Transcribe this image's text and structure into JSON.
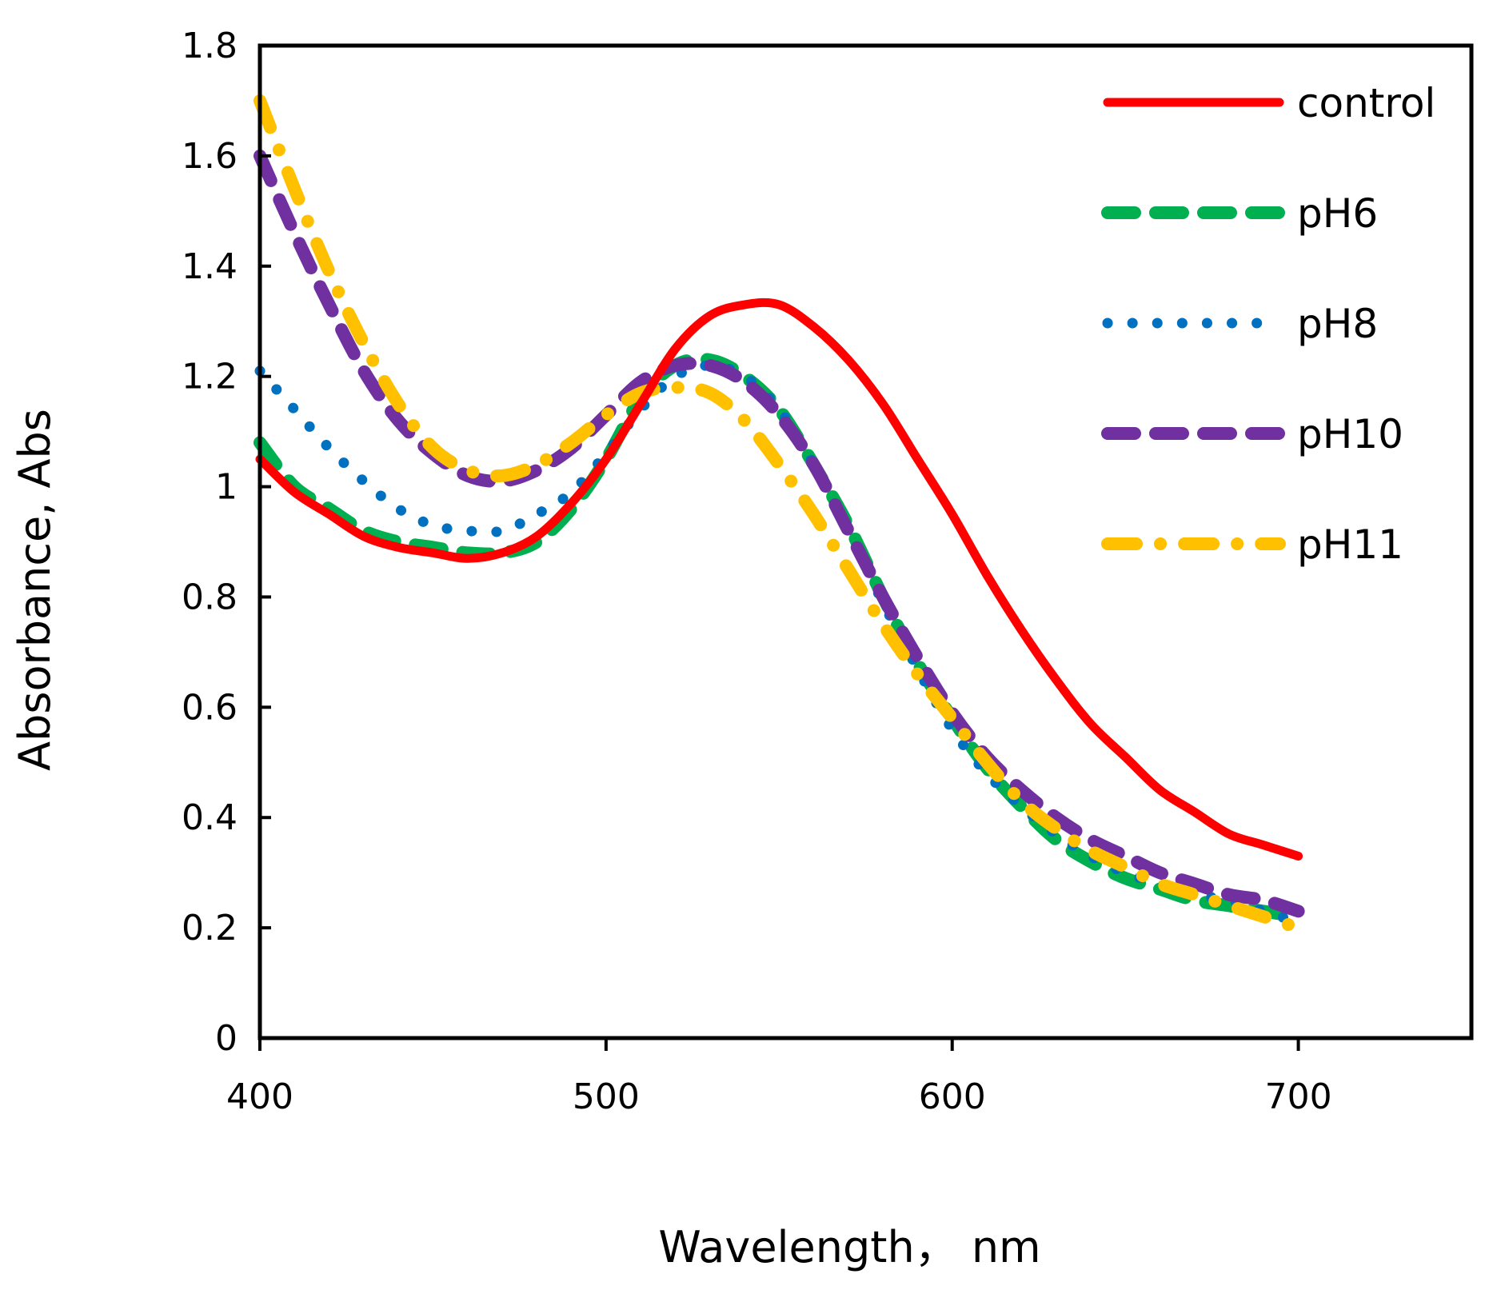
{
  "chart_data": {
    "type": "line",
    "title": "",
    "xlabel": "Wavelength， nm",
    "ylabel": "Absorbance, Abs",
    "xlim": [
      400,
      750
    ],
    "ylim": [
      0,
      1.8
    ],
    "xticks": [
      400,
      500,
      600,
      700
    ],
    "yticks": [
      0,
      0.2,
      0.4,
      0.6,
      0.8,
      1,
      1.2,
      1.4,
      1.6,
      1.8
    ],
    "xtick_labels": [
      "400",
      "500",
      "600",
      "700"
    ],
    "ytick_labels": [
      "0",
      "0.2",
      "0.4",
      "0.6",
      "0.8",
      "1",
      "1.2",
      "1.4",
      "1.6",
      "1.8"
    ],
    "grid": false,
    "legend_position": "top-right",
    "series": [
      {
        "name": "control",
        "color": "#ff0000",
        "style": "solid",
        "x": [
          400,
          410,
          420,
          430,
          440,
          450,
          460,
          470,
          480,
          490,
          500,
          510,
          520,
          530,
          540,
          550,
          560,
          570,
          580,
          590,
          600,
          610,
          620,
          630,
          640,
          650,
          660,
          670,
          680,
          690,
          700
        ],
        "y": [
          1.05,
          0.99,
          0.95,
          0.91,
          0.89,
          0.88,
          0.87,
          0.88,
          0.91,
          0.97,
          1.05,
          1.15,
          1.25,
          1.31,
          1.33,
          1.33,
          1.29,
          1.23,
          1.15,
          1.05,
          0.95,
          0.84,
          0.74,
          0.65,
          0.57,
          0.51,
          0.45,
          0.41,
          0.37,
          0.35,
          0.33
        ]
      },
      {
        "name": "pH6",
        "color": "#00b050",
        "style": "dashed",
        "x": [
          400,
          410,
          420,
          430,
          440,
          450,
          460,
          470,
          480,
          490,
          500,
          510,
          520,
          530,
          540,
          550,
          560,
          570,
          580,
          590,
          600,
          610,
          620,
          630,
          640,
          650,
          660,
          670,
          680,
          690,
          700
        ],
        "y": [
          1.08,
          1.0,
          0.96,
          0.92,
          0.9,
          0.89,
          0.88,
          0.88,
          0.9,
          0.96,
          1.05,
          1.16,
          1.22,
          1.23,
          1.2,
          1.14,
          1.04,
          0.93,
          0.8,
          0.68,
          0.58,
          0.49,
          0.42,
          0.36,
          0.32,
          0.29,
          0.27,
          0.25,
          0.24,
          0.23,
          0.22
        ]
      },
      {
        "name": "pH8",
        "color": "#0070c0",
        "style": "dotted",
        "x": [
          400,
          410,
          420,
          430,
          440,
          450,
          460,
          470,
          480,
          490,
          500,
          510,
          520,
          530,
          540,
          550,
          560,
          570,
          580,
          590,
          600,
          610,
          620,
          630,
          640,
          650,
          660,
          670,
          680,
          690,
          700
        ],
        "y": [
          1.21,
          1.14,
          1.07,
          1.01,
          0.96,
          0.93,
          0.92,
          0.92,
          0.95,
          0.99,
          1.06,
          1.14,
          1.2,
          1.22,
          1.2,
          1.14,
          1.04,
          0.92,
          0.79,
          0.67,
          0.56,
          0.48,
          0.42,
          0.37,
          0.33,
          0.3,
          0.28,
          0.26,
          0.25,
          0.23,
          0.21
        ]
      },
      {
        "name": "pH10",
        "color": "#7030a0",
        "style": "dashed",
        "x": [
          400,
          410,
          420,
          430,
          440,
          450,
          460,
          470,
          480,
          490,
          500,
          510,
          520,
          530,
          540,
          550,
          560,
          570,
          580,
          590,
          600,
          610,
          620,
          630,
          640,
          650,
          660,
          670,
          680,
          690,
          700
        ],
        "y": [
          1.6,
          1.46,
          1.33,
          1.21,
          1.12,
          1.06,
          1.02,
          1.01,
          1.03,
          1.07,
          1.13,
          1.19,
          1.22,
          1.22,
          1.19,
          1.13,
          1.04,
          0.92,
          0.8,
          0.69,
          0.59,
          0.51,
          0.45,
          0.4,
          0.36,
          0.33,
          0.3,
          0.28,
          0.26,
          0.25,
          0.23
        ]
      },
      {
        "name": "pH11",
        "color": "#ffc000",
        "style": "dash-dot",
        "x": [
          400,
          410,
          420,
          430,
          440,
          450,
          460,
          470,
          480,
          490,
          500,
          510,
          520,
          530,
          540,
          550,
          560,
          570,
          580,
          590,
          600,
          610,
          620,
          630,
          640,
          650,
          660,
          670,
          680,
          690,
          700
        ],
        "y": [
          1.7,
          1.54,
          1.39,
          1.26,
          1.15,
          1.07,
          1.03,
          1.02,
          1.04,
          1.08,
          1.13,
          1.17,
          1.18,
          1.17,
          1.12,
          1.04,
          0.95,
          0.85,
          0.75,
          0.66,
          0.58,
          0.5,
          0.43,
          0.38,
          0.34,
          0.31,
          0.28,
          0.26,
          0.24,
          0.22,
          0.2
        ]
      }
    ]
  }
}
